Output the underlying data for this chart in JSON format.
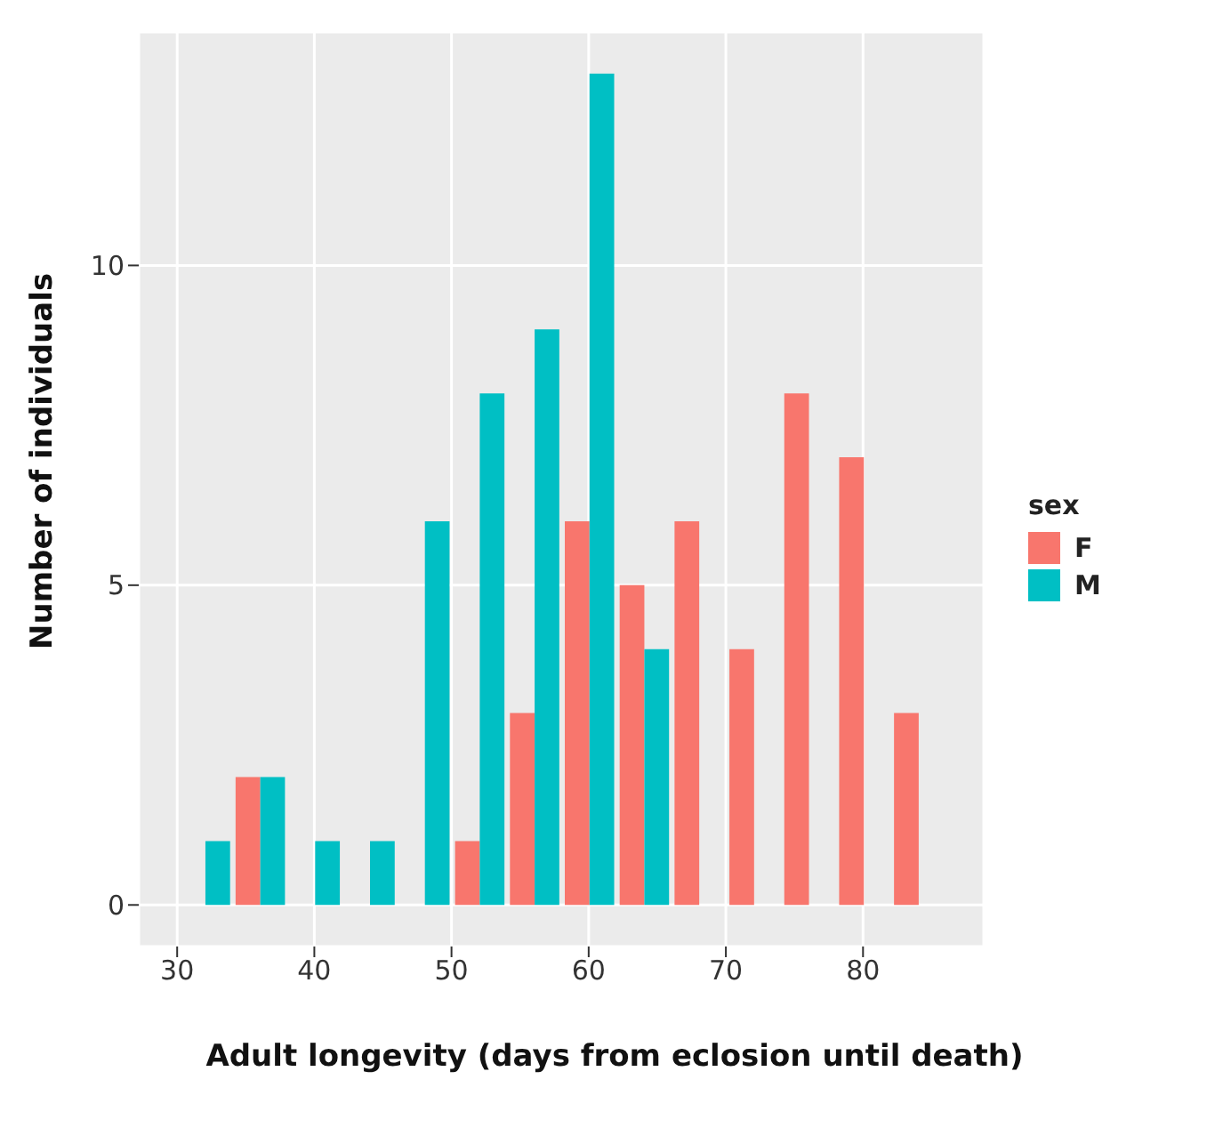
{
  "chart_data": {
    "type": "histogram",
    "xlabel": "Adult longevity (days from eclosion until death)",
    "ylabel": "Number of individuals",
    "legend_title": "sex",
    "bins": [
      30,
      34,
      38,
      42,
      46,
      50,
      54,
      58,
      62,
      66,
      70,
      74,
      78,
      82,
      86
    ],
    "series": [
      {
        "name": "F",
        "color": "#f8766d",
        "values": [
          0,
          2,
          0,
          0,
          0,
          1,
          3,
          6,
          5,
          6,
          4,
          8,
          7,
          3
        ]
      },
      {
        "name": "M",
        "color": "#00bfc4",
        "values": [
          1,
          2,
          1,
          1,
          6,
          8,
          9,
          13,
          4,
          0,
          0,
          0,
          0,
          0
        ]
      }
    ],
    "xlim": [
      27.2,
      88.8
    ],
    "xticks": [
      30,
      40,
      50,
      60,
      70,
      80
    ],
    "ylim": [
      -0.65,
      13.65
    ],
    "yticks": [
      0,
      5,
      10
    ],
    "grid": true,
    "legend": "right"
  }
}
